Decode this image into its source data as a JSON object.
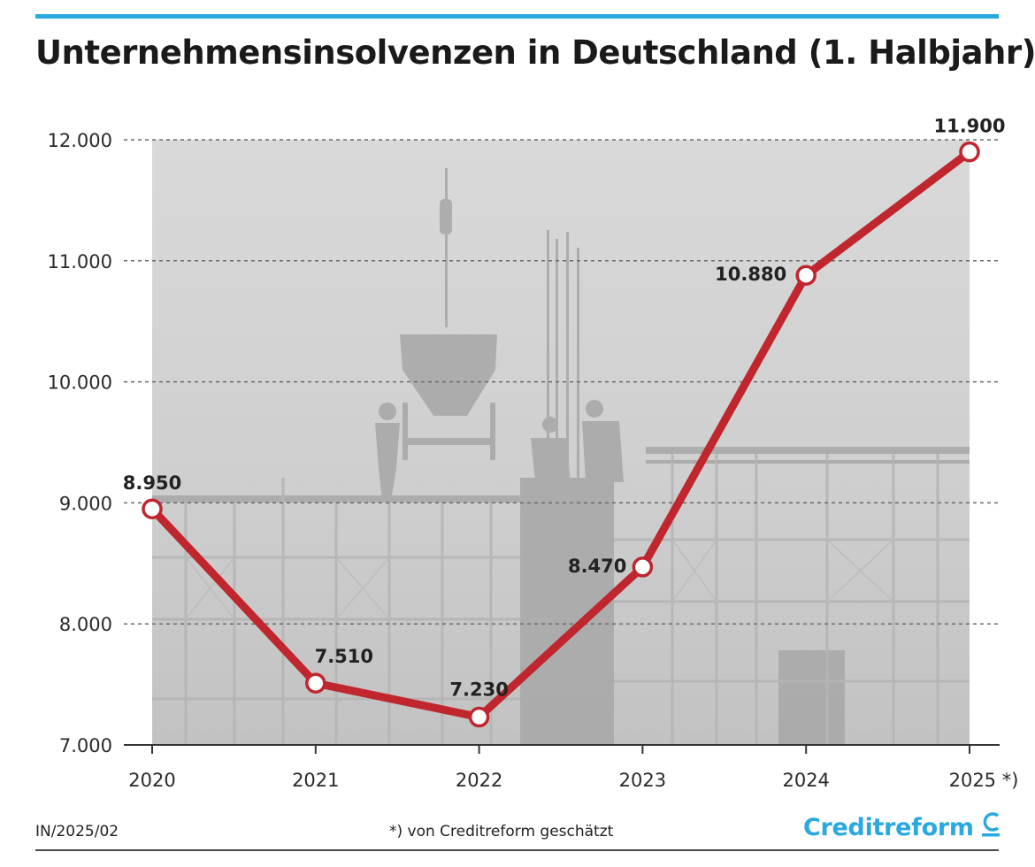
{
  "title": "Unternehmensinsolvenzen in Deutschland (1. Halbjahr)",
  "chart_data": {
    "type": "line",
    "title": "Unternehmensinsolvenzen in Deutschland (1. Halbjahr)",
    "categories": [
      "2020",
      "2021",
      "2022",
      "2023",
      "2024",
      "2025 *)"
    ],
    "values": [
      8950,
      7510,
      7230,
      8470,
      10880,
      11900
    ],
    "value_labels": [
      "8.950",
      "7.510",
      "7.230",
      "8.470",
      "10.880",
      "11.900"
    ],
    "yticks": [
      7000,
      8000,
      9000,
      10000,
      11000,
      12000
    ],
    "ytick_labels": [
      "7.000",
      "8.000",
      "9.000",
      "10.000",
      "11.000",
      "12.000"
    ],
    "ylim": [
      7000,
      12000
    ],
    "grid": true,
    "line_color": "#c0262d",
    "marker_fill": "#ffffff",
    "background_photo": "construction-site-photo"
  },
  "footer": {
    "code": "IN/2025/02",
    "note": "*) von Creditreform geschätzt",
    "brand": "Creditreform"
  },
  "colors": {
    "accent": "#2aa9e0",
    "line": "#c0262d"
  }
}
